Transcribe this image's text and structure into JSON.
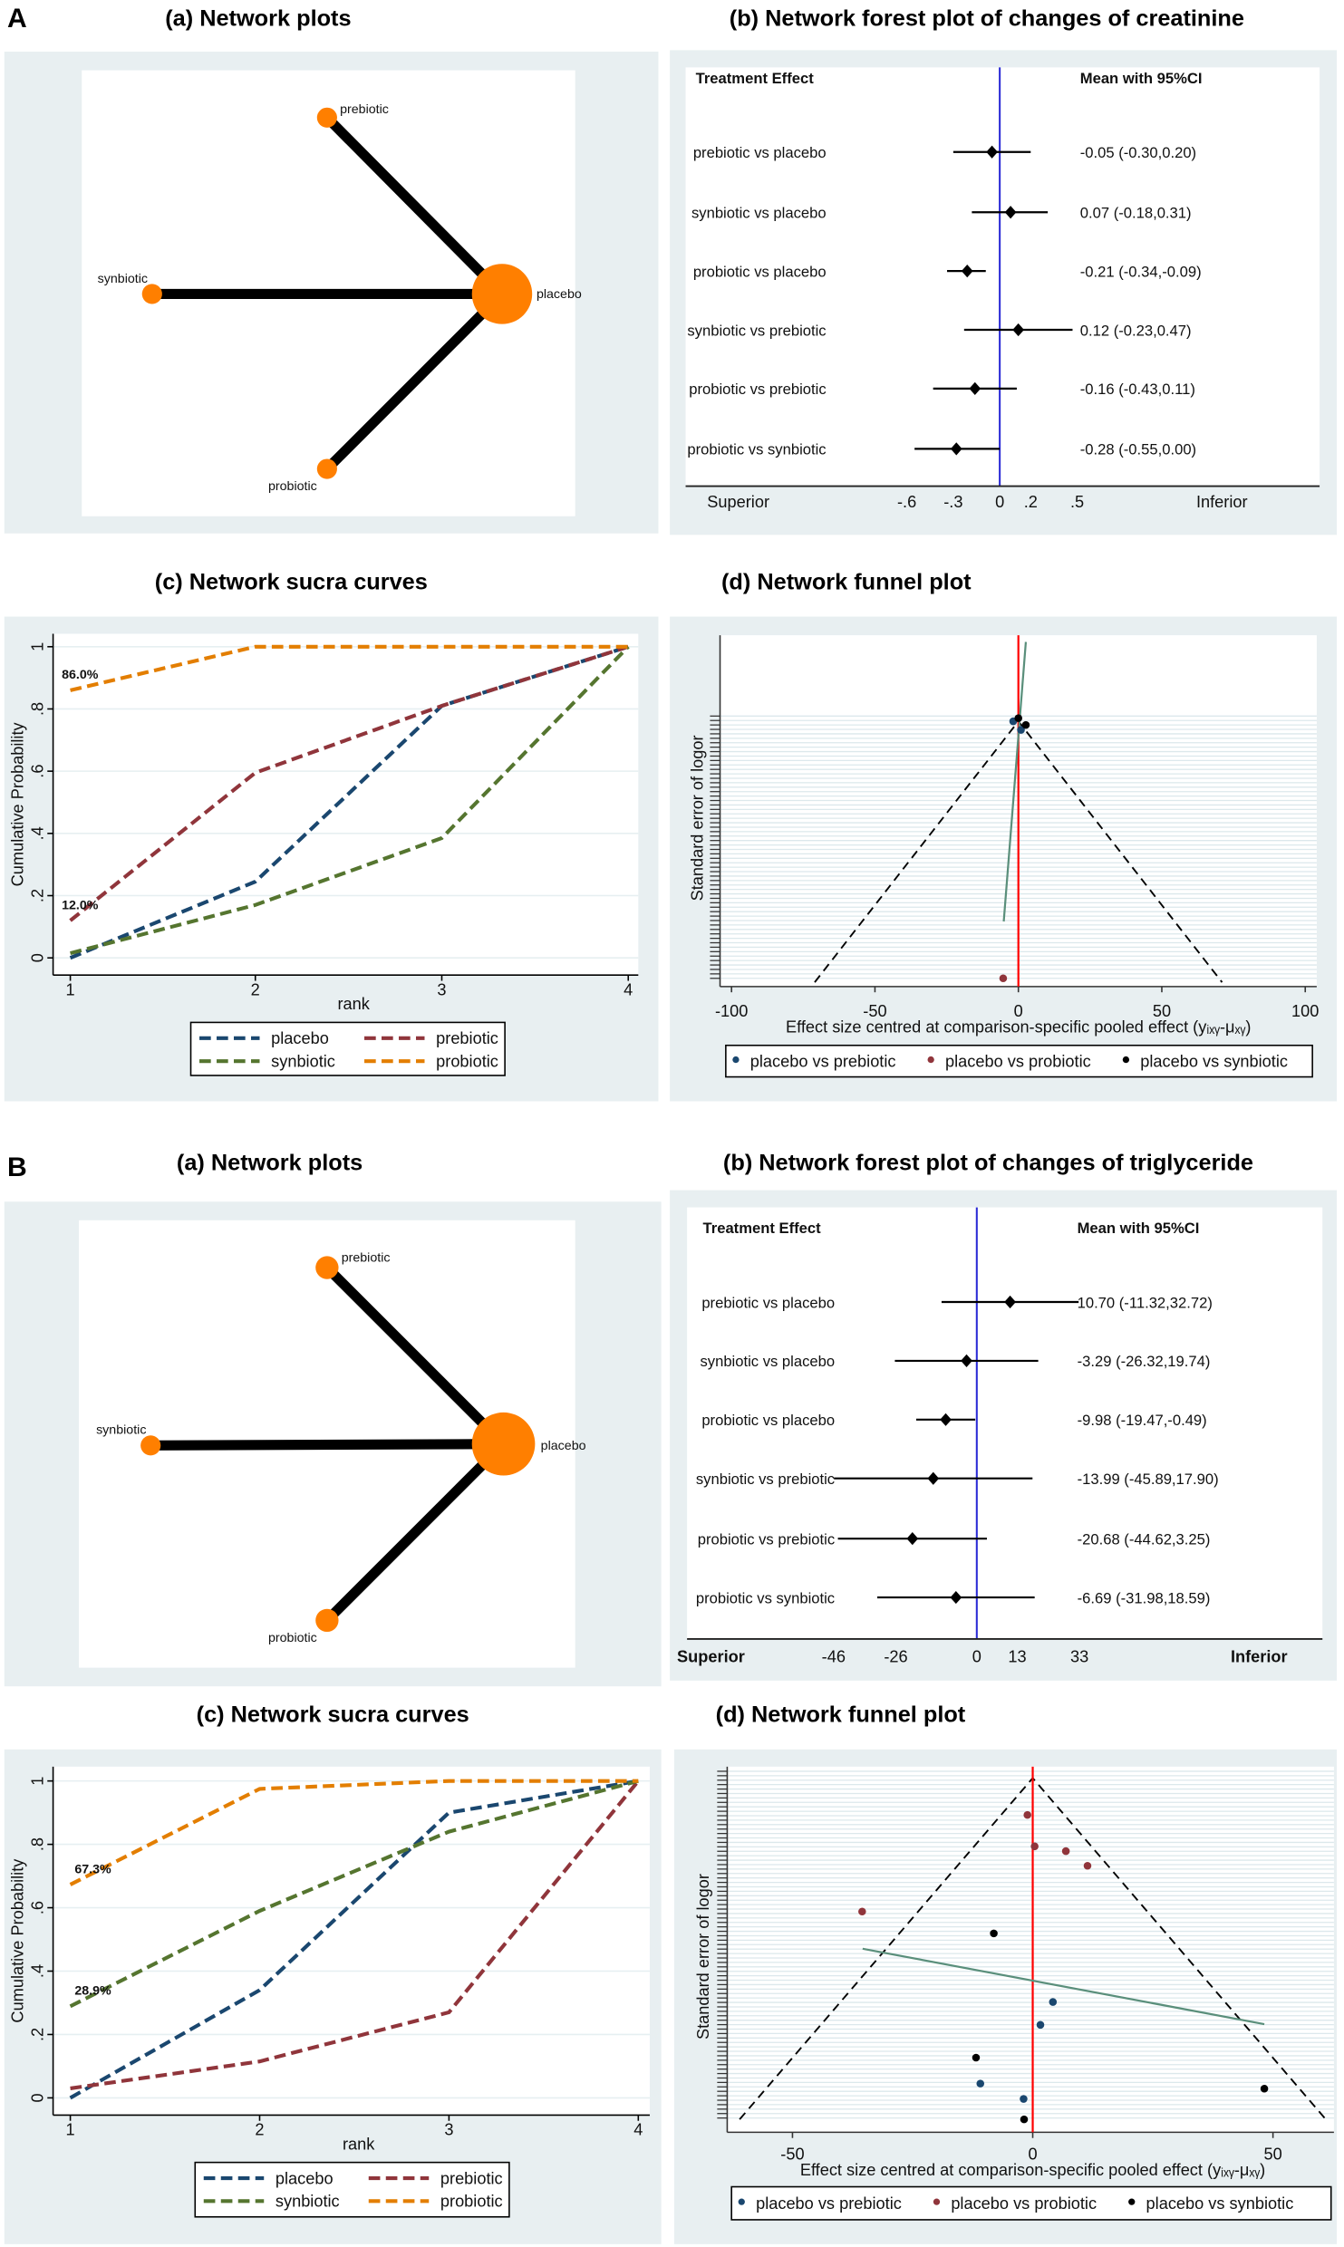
{
  "figure": {
    "label_A": "A",
    "label_B": "B",
    "titles_A": {
      "a": "(a) Network plots",
      "b": "(b) Network forest plot of changes of creatinine",
      "c": "(c) Network sucra curves",
      "d": "(d) Network funnel plot"
    },
    "titles_B": {
      "a": "(a) Network plots",
      "b": "(b) Network forest plot of changes of triglyceride",
      "c": "(c) Network sucra curves",
      "d": "(d) Network funnel plot"
    }
  },
  "colors": {
    "panel_bg": "#e8eff1",
    "node": "#ff7f00",
    "placebo": "#1a476f",
    "prebiotic": "#90353b",
    "synbiotic": "#55752f",
    "probiotic": "#e37e00",
    "null_line_forest": "#2b2bd6",
    "null_line_funnel": "#ff0000",
    "egger_line": "#5a8f7b"
  },
  "chart_data": [
    {
      "type": "network",
      "panel": "A-a",
      "nodes": [
        {
          "id": "placebo",
          "label": "placebo"
        },
        {
          "id": "prebiotic",
          "label": "prebiotic"
        },
        {
          "id": "synbiotic",
          "label": "synbiotic"
        },
        {
          "id": "probiotic",
          "label": "probiotic"
        }
      ],
      "edges": [
        [
          "placebo",
          "prebiotic"
        ],
        [
          "placebo",
          "synbiotic"
        ],
        [
          "placebo",
          "probiotic"
        ]
      ]
    },
    {
      "type": "forest",
      "panel": "A-b",
      "header_left": "Treatment Effect",
      "header_right": "Mean with 95%CI",
      "superior": "Superior",
      "inferior": "Inferior",
      "rows": [
        {
          "label": "prebiotic vs placebo",
          "mean": -0.05,
          "lo": -0.3,
          "hi": 0.2,
          "text": "-0.05 (-0.30,0.20)"
        },
        {
          "label": "synbiotic vs placebo",
          "mean": 0.07,
          "lo": -0.18,
          "hi": 0.31,
          "text": "0.07 (-0.18,0.31)"
        },
        {
          "label": "probiotic vs placebo",
          "mean": -0.21,
          "lo": -0.34,
          "hi": -0.09,
          "text": "-0.21 (-0.34,-0.09)"
        },
        {
          "label": "synbiotic vs prebiotic",
          "mean": 0.12,
          "lo": -0.23,
          "hi": 0.47,
          "text": "0.12 (-0.23,0.47)"
        },
        {
          "label": "probiotic vs prebiotic",
          "mean": -0.16,
          "lo": -0.43,
          "hi": 0.11,
          "text": "-0.16 (-0.43,0.11)"
        },
        {
          "label": "probiotic vs synbiotic",
          "mean": -0.28,
          "lo": -0.55,
          "hi": 0.0,
          "text": "-0.28 (-0.55,0.00)"
        }
      ],
      "ticks": [
        {
          "value": -0.6,
          "label": "-.6"
        },
        {
          "value": -0.3,
          "label": "-.3"
        },
        {
          "value": 0,
          "label": "0"
        },
        {
          "value": 0.2,
          "label": ".2"
        },
        {
          "value": 0.5,
          "label": ".5"
        }
      ]
    },
    {
      "type": "line",
      "panel": "A-c",
      "xlabel": "rank",
      "ylabel": "Cumulative Probability",
      "x": [
        1,
        2,
        3,
        4
      ],
      "xtick_labels": [
        "1",
        "2",
        "3",
        "4"
      ],
      "ylim": [
        0,
        1
      ],
      "yticks": [
        0,
        0.2,
        0.4,
        0.6,
        0.8,
        1
      ],
      "ytick_labels": [
        "0",
        ".2",
        ".4",
        ".6",
        ".8",
        "1"
      ],
      "series": [
        {
          "name": "placebo",
          "values": [
            0.0,
            0.245,
            0.81,
            1
          ]
        },
        {
          "name": "prebiotic",
          "values": [
            0.12,
            0.595,
            0.81,
            1
          ]
        },
        {
          "name": "synbiotic",
          "values": [
            0.015,
            0.17,
            0.385,
            1
          ]
        },
        {
          "name": "probiotic",
          "values": [
            0.86,
            1,
            1,
            1
          ]
        }
      ],
      "annotations": [
        {
          "text": "86.0%",
          "value": 0.86
        },
        {
          "text": "12.0%",
          "value": 0.12
        }
      ],
      "legend": "bottom"
    },
    {
      "type": "scatter",
      "panel": "A-d",
      "xlabel": "Effect size centred at comparison-specific pooled effect (yᵢₓᵧ-μₓᵧ)",
      "ylabel": "Standard error of logor",
      "xlim": [
        -104,
        104
      ],
      "xticks": [
        {
          "value": -100,
          "label": "-100"
        },
        {
          "value": -50,
          "label": "-50"
        },
        {
          "value": 0,
          "label": "0"
        },
        {
          "value": 50,
          "label": "50"
        },
        {
          "value": 100,
          "label": "100"
        }
      ],
      "ylim_relative_se": [
        -0.33,
        1.02
      ],
      "funnel_halfwidth_at_max_se": 71,
      "series": [
        {
          "name": "placebo vs prebiotic",
          "points": [
            [
              -1.8,
              0.0
            ],
            [
              0.9,
              0.033
            ]
          ]
        },
        {
          "name": "placebo vs probiotic",
          "points": [
            [
              -5.3,
              0.985
            ]
          ]
        },
        {
          "name": "placebo vs synbiotic",
          "points": [
            [
              0,
              -0.012
            ],
            [
              2.6,
              0.014
            ]
          ]
        }
      ],
      "egger_line": [
        [
          2.6,
          -0.304
        ],
        [
          -5.1,
          0.767
        ]
      ],
      "legend": "bottom"
    },
    {
      "type": "network",
      "panel": "B-a",
      "nodes": [
        {
          "id": "placebo",
          "label": "placebo"
        },
        {
          "id": "prebiotic",
          "label": "prebiotic"
        },
        {
          "id": "synbiotic",
          "label": "synbiotic"
        },
        {
          "id": "probiotic",
          "label": "probiotic"
        }
      ],
      "edges": [
        [
          "placebo",
          "prebiotic"
        ],
        [
          "placebo",
          "synbiotic"
        ],
        [
          "placebo",
          "probiotic"
        ]
      ]
    },
    {
      "type": "forest",
      "panel": "B-b",
      "header_left": "Treatment Effect",
      "header_right": "Mean with 95%CI",
      "superior": "Superior",
      "inferior": "Inferior",
      "rows": [
        {
          "label": "prebiotic vs placebo",
          "mean": 10.7,
          "lo": -11.32,
          "hi": 32.72,
          "text": "10.70 (-11.32,32.72)"
        },
        {
          "label": "synbiotic vs placebo",
          "mean": -3.29,
          "lo": -26.32,
          "hi": 19.74,
          "text": "-3.29 (-26.32,19.74)"
        },
        {
          "label": "probiotic vs placebo",
          "mean": -9.98,
          "lo": -19.47,
          "hi": -0.49,
          "text": "-9.98 (-19.47,-0.49)"
        },
        {
          "label": "synbiotic vs prebiotic",
          "mean": -13.99,
          "lo": -45.89,
          "hi": 17.9,
          "text": "-13.99 (-45.89,17.90)"
        },
        {
          "label": "probiotic vs prebiotic",
          "mean": -20.68,
          "lo": -44.62,
          "hi": 3.25,
          "text": "-20.68 (-44.62,3.25)"
        },
        {
          "label": "probiotic vs synbiotic",
          "mean": -6.69,
          "lo": -31.98,
          "hi": 18.59,
          "text": "-6.69 (-31.98,18.59)"
        }
      ],
      "ticks": [
        {
          "value": -46,
          "label": "-46"
        },
        {
          "value": -26,
          "label": "-26"
        },
        {
          "value": 0,
          "label": "0"
        },
        {
          "value": 13,
          "label": "13"
        },
        {
          "value": 33,
          "label": "33"
        }
      ]
    },
    {
      "type": "line",
      "panel": "B-c",
      "xlabel": "rank",
      "ylabel": "Cumulative Probability",
      "x": [
        1,
        2,
        3,
        4
      ],
      "xtick_labels": [
        "1",
        "2",
        "3",
        "4"
      ],
      "ylim": [
        0,
        1
      ],
      "yticks": [
        0,
        0.2,
        0.4,
        0.6,
        0.8,
        1
      ],
      "ytick_labels": [
        "0",
        ".2",
        ".4",
        ".6",
        ".8",
        "1"
      ],
      "series": [
        {
          "name": "placebo",
          "values": [
            0.0,
            0.34,
            0.9,
            1
          ]
        },
        {
          "name": "prebiotic",
          "values": [
            0.03,
            0.115,
            0.27,
            1
          ]
        },
        {
          "name": "synbiotic",
          "values": [
            0.289,
            0.59,
            0.84,
            1
          ]
        },
        {
          "name": "probiotic",
          "values": [
            0.673,
            0.975,
            1,
            1
          ]
        }
      ],
      "annotations": [
        {
          "text": "67.3%",
          "value": 0.673
        },
        {
          "text": "28.9%",
          "value": 0.289
        }
      ],
      "legend": "bottom"
    },
    {
      "type": "scatter",
      "panel": "B-d",
      "xlabel": "Effect size centred at comparison-specific pooled effect (yᵢₓᵧ-μₓᵧ)",
      "ylabel": "Standard error of logor",
      "xlim": [
        -63,
        63
      ],
      "xticks": [
        {
          "value": -50,
          "label": "-50"
        },
        {
          "value": 0,
          "label": "0"
        },
        {
          "value": 50,
          "label": "50"
        }
      ],
      "ylim_relative_se": [
        -0.03,
        1.03
      ],
      "funnel_halfwidth_at_max_se": 61,
      "series": [
        {
          "name": "placebo vs prebiotic",
          "points": [
            [
              4.2,
              0.656
            ],
            [
              1.6,
              0.723
            ],
            [
              -10.9,
              0.895
            ],
            [
              -1.9,
              0.94
            ]
          ]
        },
        {
          "name": "placebo vs probiotic",
          "points": [
            [
              -1.1,
              0.108
            ],
            [
              0.4,
              0.2
            ],
            [
              6.9,
              0.214
            ],
            [
              11.4,
              0.257
            ],
            [
              -35.5,
              0.391
            ]
          ]
        },
        {
          "name": "placebo vs synbiotic",
          "points": [
            [
              -8.1,
              0.455
            ],
            [
              -11.8,
              0.819
            ],
            [
              48.2,
              0.91
            ],
            [
              -1.8,
              1.0
            ]
          ]
        }
      ],
      "egger_line": [
        [
          -35.4,
          0.5
        ],
        [
          48.2,
          0.721
        ]
      ],
      "legend": "bottom"
    }
  ]
}
